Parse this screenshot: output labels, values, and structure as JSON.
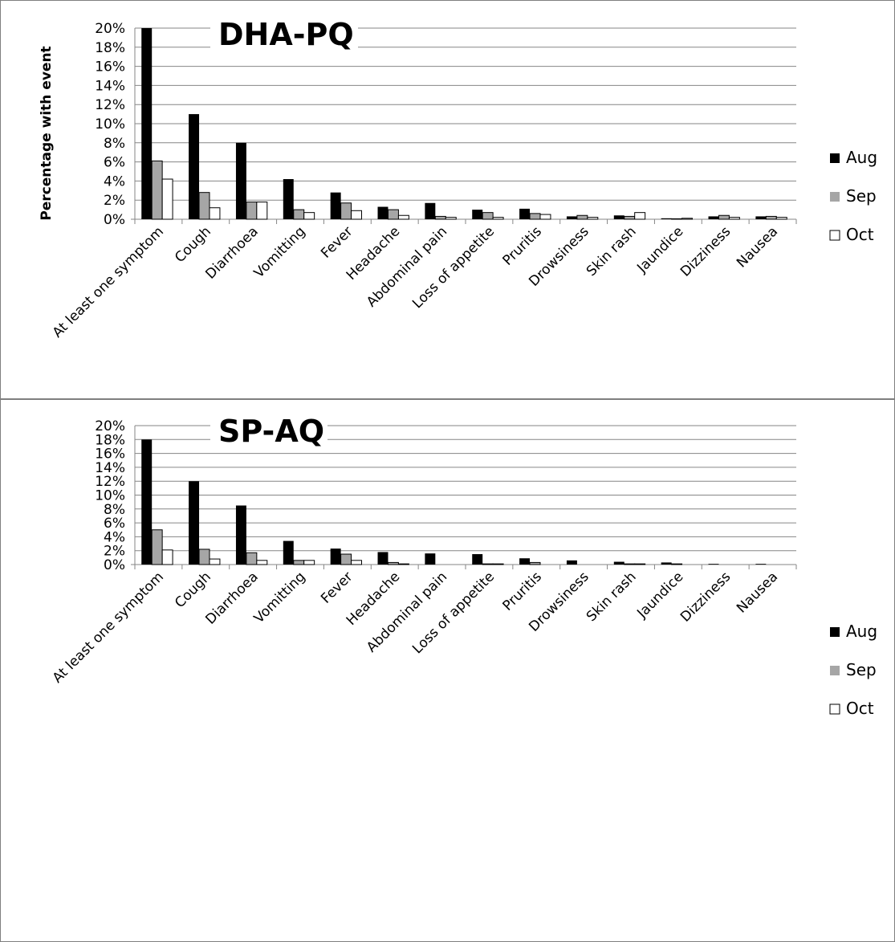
{
  "chart_data": [
    {
      "type": "bar",
      "title": "DHA-PQ",
      "ylabel": "Percentage with event",
      "xlabel": "",
      "ylim": [
        0,
        20
      ],
      "yticks": [
        "0%",
        "2%",
        "4%",
        "6%",
        "8%",
        "10%",
        "12%",
        "14%",
        "16%",
        "18%",
        "20%"
      ],
      "grid": true,
      "legend_position": "right",
      "categories": [
        "At least one symptom",
        "Cough",
        "Diarrhoea",
        "Vomitting",
        "Fever",
        "Headache",
        "Abdominal pain",
        "Loss of appetite",
        "Pruritis",
        "Drowsiness",
        "Skin rash",
        "Jaundice",
        "Dizziness",
        "Nausea"
      ],
      "series": [
        {
          "name": "Aug",
          "color": "#000000",
          "values": [
            20,
            11,
            8,
            4.2,
            2.8,
            1.3,
            1.7,
            1.0,
            1.1,
            0.3,
            0.4,
            0.1,
            0.3,
            0.3
          ]
        },
        {
          "name": "Sep",
          "color": "#a6a6a6",
          "values": [
            6.1,
            2.8,
            1.8,
            1.0,
            1.7,
            1.0,
            0.3,
            0.7,
            0.6,
            0.4,
            0.3,
            0.05,
            0.4,
            0.3
          ]
        },
        {
          "name": "Oct",
          "color": "#ffffff",
          "values": [
            4.2,
            1.2,
            1.8,
            0.7,
            0.9,
            0.4,
            0.2,
            0.2,
            0.5,
            0.2,
            0.7,
            0.1,
            0.2,
            0.2
          ]
        }
      ]
    },
    {
      "type": "bar",
      "title": "SP-AQ",
      "ylabel": "",
      "xlabel": "",
      "ylim": [
        0,
        20
      ],
      "yticks": [
        "0%",
        "2%",
        "4%",
        "6%",
        "8%",
        "10%",
        "12%",
        "14%",
        "16%",
        "18%",
        "20%"
      ],
      "grid": true,
      "legend_position": "right",
      "categories": [
        "At least one symptom",
        "Cough",
        "Diarrhoea",
        "Vomitting",
        "Fever",
        "Headache",
        "Abdominal pain",
        "Loss of appetite",
        "Pruritis",
        "Drowsiness",
        "Skin rash",
        "Jaundice",
        "Dizziness",
        "Nausea"
      ],
      "series": [
        {
          "name": "Aug",
          "color": "#000000",
          "values": [
            18,
            12,
            8.5,
            3.4,
            2.3,
            1.8,
            1.6,
            1.5,
            0.9,
            0.6,
            0.4,
            0.3,
            0.1,
            0.1
          ]
        },
        {
          "name": "Sep",
          "color": "#a6a6a6",
          "values": [
            5.0,
            2.2,
            1.7,
            0.6,
            1.5,
            0.3,
            0,
            0.1,
            0.3,
            0,
            0.1,
            0.1,
            0,
            0
          ]
        },
        {
          "name": "Oct",
          "color": "#ffffff",
          "values": [
            2.1,
            0.8,
            0.6,
            0.6,
            0.6,
            0.1,
            0,
            0.1,
            0,
            0,
            0.1,
            0,
            0,
            0
          ]
        }
      ]
    }
  ]
}
